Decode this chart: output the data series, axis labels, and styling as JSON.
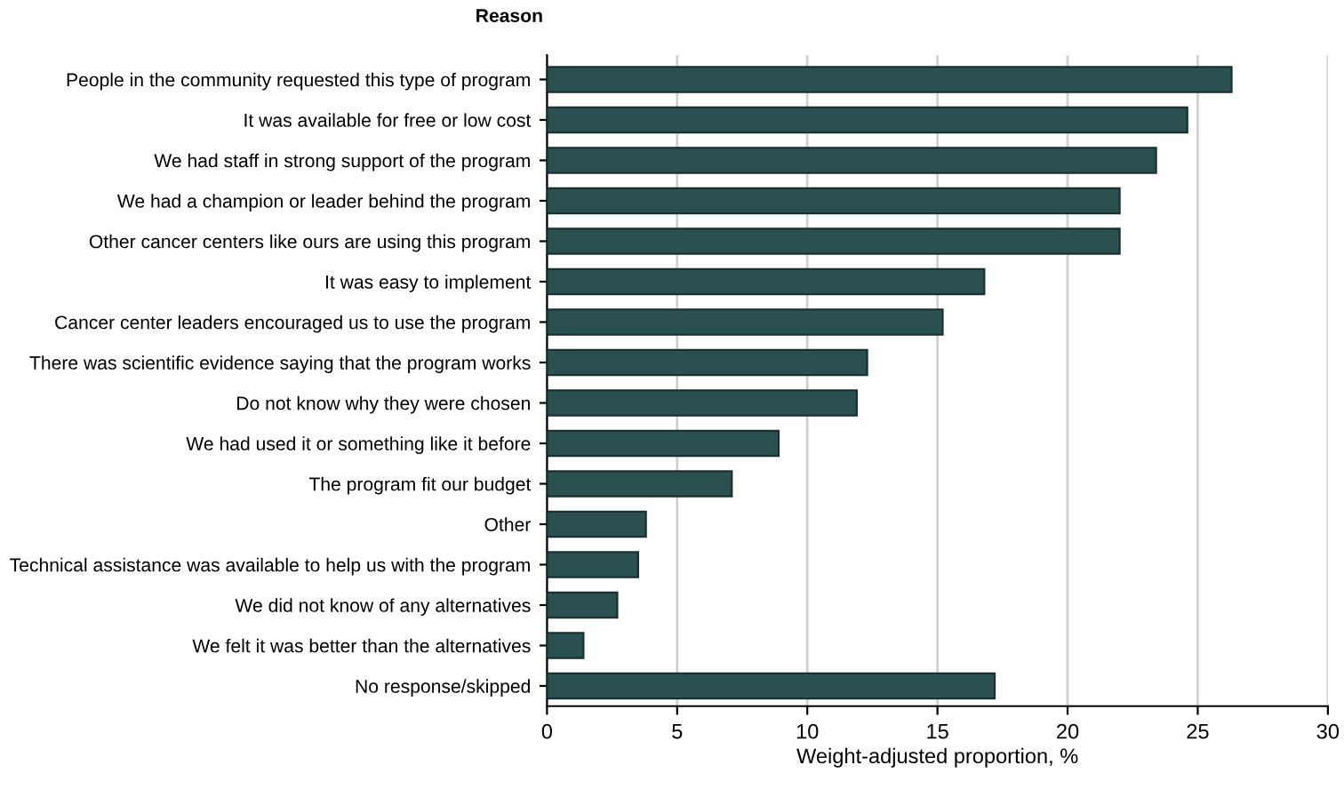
{
  "chart_data": {
    "type": "bar",
    "orientation": "horizontal",
    "ylabel": "Reason",
    "xlabel": "Weight-adjusted proportion, %",
    "categories": [
      "People in the community requested this type of program",
      "It was available for free or low cost",
      "We had staff in strong support of the program",
      "We had a champion or leader behind the program",
      "Other cancer centers like ours are using this program",
      "It was easy to implement",
      "Cancer center leaders encouraged us to use the program",
      "There was scientific evidence saying that the program works",
      "Do not know why they were chosen",
      "We had used it or something like it before",
      "The program fit our budget",
      "Other",
      "Technical assistance was available to help us with the program",
      "We did not know of any alternatives",
      "We felt it was better than the alternatives",
      "No response/skipped"
    ],
    "values": [
      26.3,
      24.6,
      23.4,
      22.0,
      22.0,
      16.8,
      15.2,
      12.3,
      11.9,
      8.9,
      7.1,
      3.8,
      3.5,
      2.7,
      1.4,
      17.2
    ],
    "color": "#2a5050",
    "xlim": [
      0,
      30
    ],
    "xticks": [
      0,
      5,
      10,
      15,
      20,
      25,
      30
    ],
    "grid": "x",
    "legend": false
  }
}
